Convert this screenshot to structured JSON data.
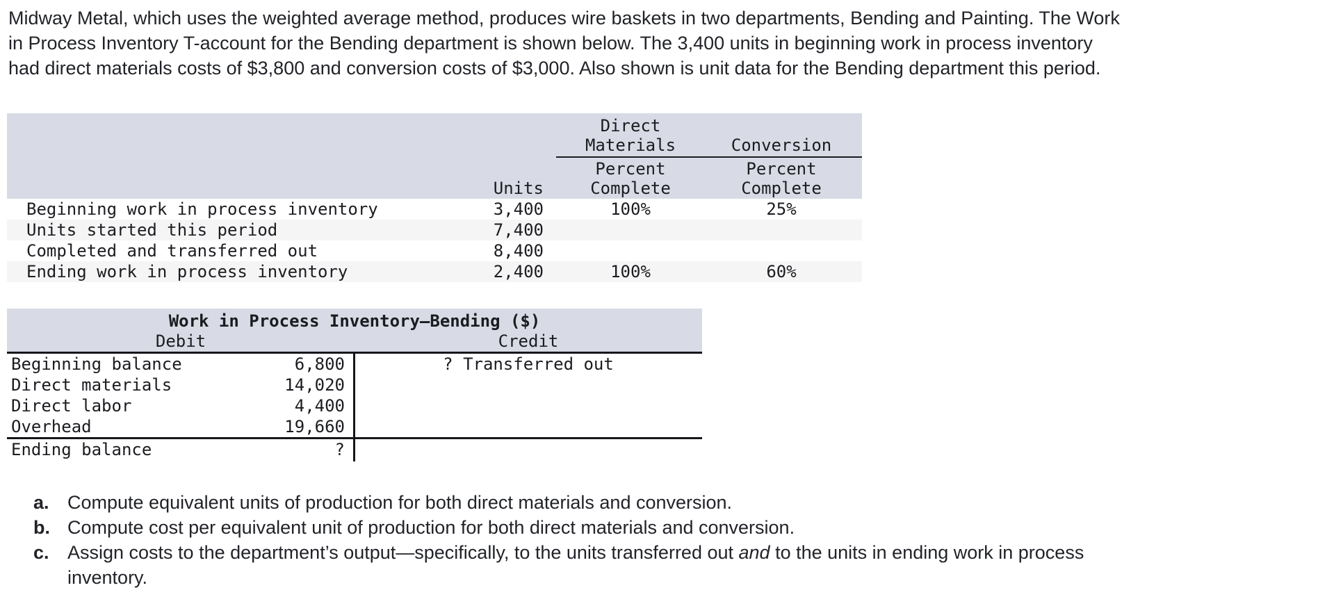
{
  "paragraph": {
    "lines": [
      "Midway Metal, which uses the weighted average method, produces wire baskets in two departments, Bending and Painting. The Work",
      "in Process Inventory T-account for the Bending department is shown below. The 3,400 units in beginning work in process inventory",
      "had direct materials costs of $3,800 and conversion costs of $3,000. Also shown is unit data for the Bending department this period."
    ]
  },
  "units_table": {
    "header": {
      "direct": "Direct",
      "materials": "Materials",
      "conversion": "Conversion",
      "percent_dm": "Percent",
      "complete_dm": "Complete",
      "percent_conv": "Percent",
      "complete_conv": "Complete",
      "units": "Units"
    },
    "rows": [
      {
        "label": "Beginning work in process inventory",
        "units": "3,400",
        "dm_percent": "100%",
        "conv_percent": "25%"
      },
      {
        "label": "Units started this period",
        "units": "7,400",
        "dm_percent": "",
        "conv_percent": ""
      },
      {
        "label": "Completed and transferred out",
        "units": "8,400",
        "dm_percent": "",
        "conv_percent": ""
      },
      {
        "label": "Ending work in process inventory",
        "units": "2,400",
        "dm_percent": "100%",
        "conv_percent": "60%"
      }
    ]
  },
  "t_account": {
    "title": "Work in Process Inventory—Bending ($)",
    "debit_label": "Debit",
    "credit_label": "Credit",
    "debit_rows": [
      {
        "label": "Beginning balance",
        "amount": "6,800"
      },
      {
        "label": "Direct materials",
        "amount": "14,020"
      },
      {
        "label": "Direct labor",
        "amount": "4,400"
      },
      {
        "label": "Overhead",
        "amount": "19,660"
      }
    ],
    "credit_entry": "? Transferred out",
    "ending_row": {
      "label": "Ending balance",
      "amount": "?"
    }
  },
  "questions": {
    "items": [
      {
        "letter": "a.",
        "text": "Compute equivalent units of production for both direct materials and conversion."
      },
      {
        "letter": "b.",
        "text": "Compute cost per equivalent unit of production for both direct materials and conversion."
      },
      {
        "letter": "c.",
        "line1_pre": "Assign costs to the department’s output—specifically, to the units transferred out ",
        "line1_italic": "and",
        "line1_post": " to the units in ending work in process",
        "line2": "inventory."
      }
    ]
  }
}
